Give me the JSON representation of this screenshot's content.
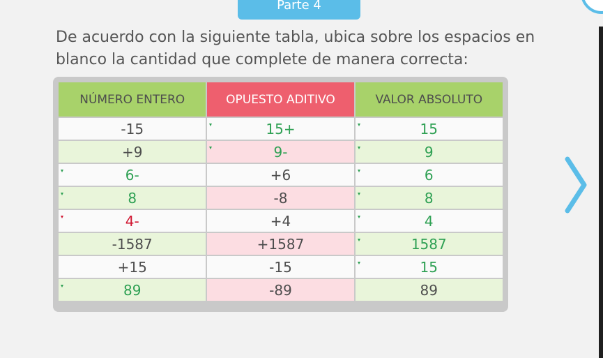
{
  "header": {
    "tab_label": "Parte 4"
  },
  "instructions": "De acuerdo con la siguiente tabla, ubica sobre los espacios en blanco  la cantidad que complete de manera correcta:",
  "table": {
    "headers": [
      "NÚMERO ENTERO",
      "OPUESTO ADITIVO",
      "VALOR ABSOLUTO"
    ],
    "rows": [
      [
        {
          "text": "-15",
          "type": "given"
        },
        {
          "text": "15+",
          "type": "answer",
          "status": "ok"
        },
        {
          "text": "15",
          "type": "answer",
          "status": "ok"
        }
      ],
      [
        {
          "text": "+9",
          "type": "given"
        },
        {
          "text": "9-",
          "type": "answer",
          "status": "ok"
        },
        {
          "text": "9",
          "type": "answer",
          "status": "ok"
        }
      ],
      [
        {
          "text": "6-",
          "type": "answer",
          "status": "ok"
        },
        {
          "text": "+6",
          "type": "given"
        },
        {
          "text": "6",
          "type": "answer",
          "status": "ok"
        }
      ],
      [
        {
          "text": "8",
          "type": "answer",
          "status": "ok"
        },
        {
          "text": "-8",
          "type": "given"
        },
        {
          "text": "8",
          "type": "answer",
          "status": "ok"
        }
      ],
      [
        {
          "text": "4-",
          "type": "answer",
          "status": "wrong"
        },
        {
          "text": "+4",
          "type": "given"
        },
        {
          "text": "4",
          "type": "answer",
          "status": "ok"
        }
      ],
      [
        {
          "text": "-1587",
          "type": "given"
        },
        {
          "text": "+1587",
          "type": "given"
        },
        {
          "text": "1587",
          "type": "answer",
          "status": "ok"
        }
      ],
      [
        {
          "text": "+15",
          "type": "given"
        },
        {
          "text": "-15",
          "type": "given"
        },
        {
          "text": "15",
          "type": "answer",
          "status": "ok"
        }
      ],
      [
        {
          "text": "89",
          "type": "answer",
          "status": "ok"
        },
        {
          "text": "-89",
          "type": "given"
        },
        {
          "text": "89",
          "type": "given"
        }
      ]
    ]
  },
  "colors": {
    "accent": "#5bbde8",
    "header_green": "#a8d26a",
    "header_red": "#ee5f6e",
    "answer_correct": "#2ea053",
    "answer_wrong": "#d0142f"
  },
  "icons": {
    "next": "chevron-right-icon"
  }
}
